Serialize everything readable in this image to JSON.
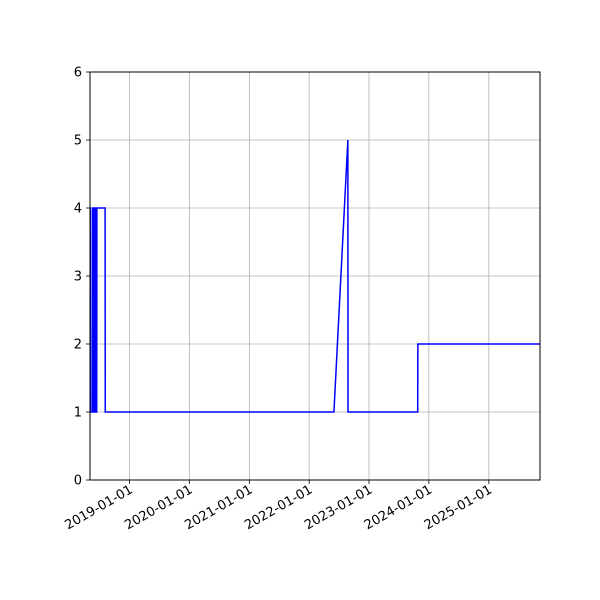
{
  "chart_data": {
    "type": "line",
    "title": "",
    "xlabel": "",
    "ylabel": "",
    "x_axis_type": "date",
    "xlim": [
      "2018-05-05",
      "2025-11-09"
    ],
    "ylim": [
      0,
      6
    ],
    "grid": true,
    "line_color": "#0000ff",
    "y_ticks": [
      0,
      1,
      2,
      3,
      4,
      5,
      6
    ],
    "x_ticks": [
      "2019-01-01",
      "2020-01-01",
      "2021-01-01",
      "2022-01-01",
      "2023-01-01",
      "2024-01-01",
      "2025-01-01"
    ],
    "series": [
      {
        "points": [
          {
            "x": "2018-05-05",
            "y": 4
          },
          {
            "x": "2018-05-08",
            "y": 4
          },
          {
            "x": "2018-05-09",
            "y": 1
          },
          {
            "x": "2018-05-20",
            "y": 1
          },
          {
            "x": "2018-05-21",
            "y": 4
          },
          {
            "x": "2018-05-26",
            "y": 4
          },
          {
            "x": "2018-05-27",
            "y": 1
          },
          {
            "x": "2018-06-02",
            "y": 1
          },
          {
            "x": "2018-06-03",
            "y": 4
          },
          {
            "x": "2018-06-10",
            "y": 4
          },
          {
            "x": "2018-06-11",
            "y": 1
          },
          {
            "x": "2018-06-15",
            "y": 1
          },
          {
            "x": "2018-06-16",
            "y": 4
          },
          {
            "x": "2018-08-05",
            "y": 4
          },
          {
            "x": "2018-08-06",
            "y": 1
          },
          {
            "x": "2022-06-01",
            "y": 1
          },
          {
            "x": "2022-08-25",
            "y": 5
          },
          {
            "x": "2022-08-26",
            "y": 1
          },
          {
            "x": "2023-10-25",
            "y": 1
          },
          {
            "x": "2023-10-26",
            "y": 2
          },
          {
            "x": "2025-11-09",
            "y": 2
          }
        ]
      }
    ]
  }
}
